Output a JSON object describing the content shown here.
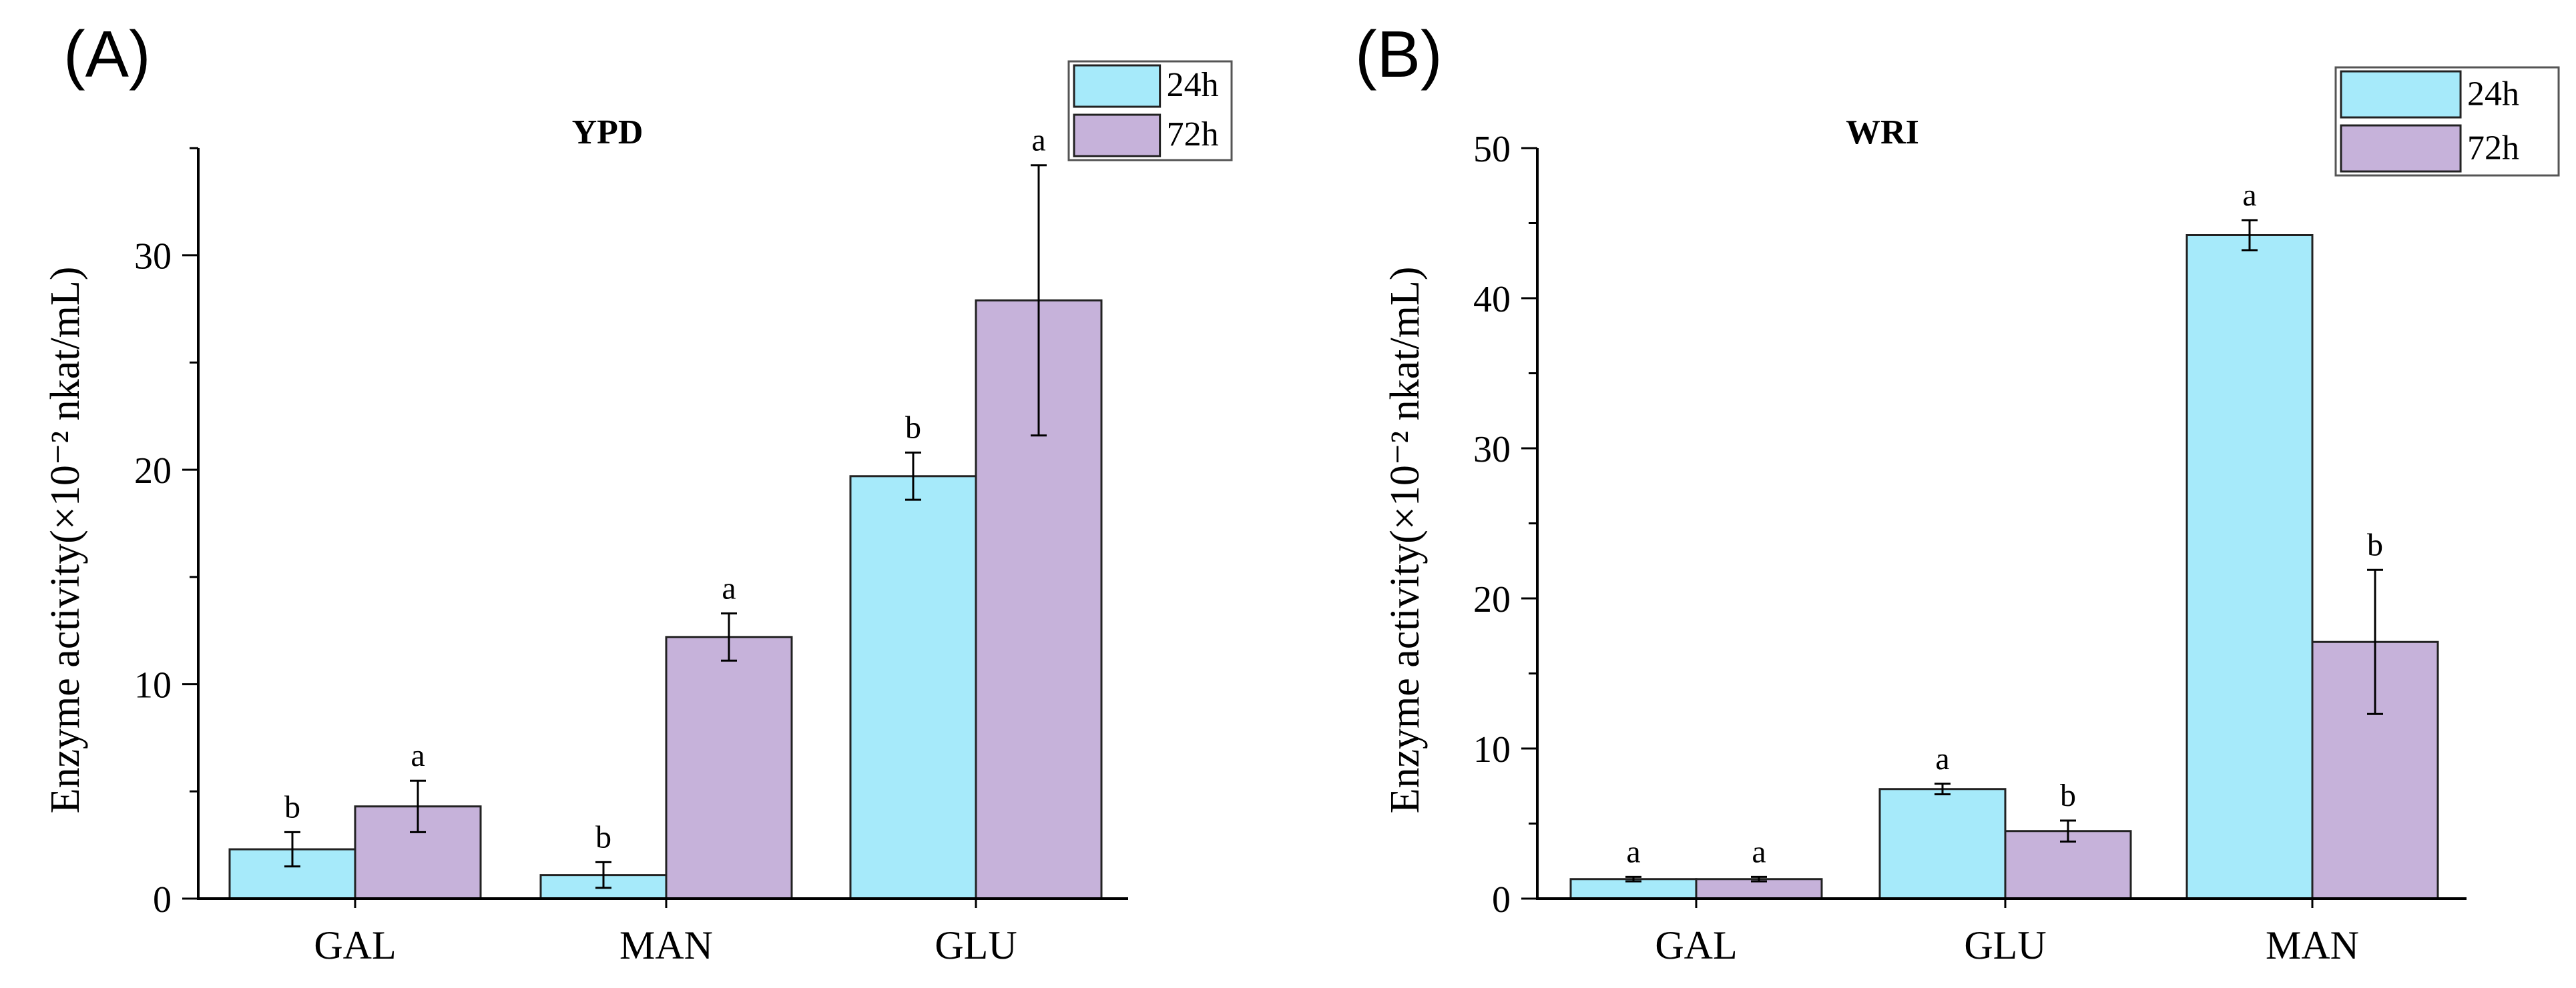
{
  "colors": {
    "series_24h": "#A6EAFA",
    "series_72h": "#C6B2DA",
    "axis": "#000000",
    "bar_stroke": "#222222"
  },
  "chart_data": [
    {
      "type": "bar",
      "panel_label": "(A)",
      "title": "YPD",
      "xlabel": "",
      "ylabel": "Enzyme activity(×10⁻² nkat/mL)",
      "ylim": [
        0,
        35
      ],
      "yticks": [
        0,
        10,
        20,
        30
      ],
      "ytick_labels": [
        "0",
        "10",
        "20",
        "30"
      ],
      "grid": false,
      "legend_position": "top-right",
      "categories": [
        "GAL",
        "MAN",
        "GLU"
      ],
      "series": [
        {
          "name": "24h",
          "color": "#A6EAFA",
          "values": [
            2.3,
            1.1,
            19.7
          ],
          "errors": [
            0.8,
            0.6,
            1.1
          ],
          "labels": [
            "b",
            "b",
            "b"
          ]
        },
        {
          "name": "72h",
          "color": "#C6B2DA",
          "values": [
            4.3,
            12.2,
            27.9
          ],
          "errors": [
            1.2,
            1.1,
            6.3
          ],
          "labels": [
            "a",
            "a",
            "a"
          ]
        }
      ]
    },
    {
      "type": "bar",
      "panel_label": "(B)",
      "title": "WRI",
      "xlabel": "",
      "ylabel": "Enzyme activity(×10⁻² nkat/mL)",
      "ylim": [
        0,
        50
      ],
      "yticks": [
        0,
        10,
        20,
        30,
        40,
        50
      ],
      "ytick_labels": [
        "0",
        "10",
        "20",
        "30",
        "40",
        "50"
      ],
      "grid": false,
      "legend_position": "top-right",
      "categories": [
        "GAL",
        "GLU",
        "MAN"
      ],
      "series": [
        {
          "name": "24h",
          "color": "#A6EAFA",
          "values": [
            1.3,
            7.3,
            44.2
          ],
          "errors": [
            0.15,
            0.35,
            1.0
          ],
          "labels": [
            "a",
            "a",
            "a"
          ]
        },
        {
          "name": "72h",
          "color": "#C6B2DA",
          "values": [
            1.3,
            4.5,
            17.1
          ],
          "errors": [
            0.15,
            0.7,
            4.8
          ],
          "labels": [
            "a",
            "b",
            "b"
          ]
        }
      ]
    }
  ]
}
